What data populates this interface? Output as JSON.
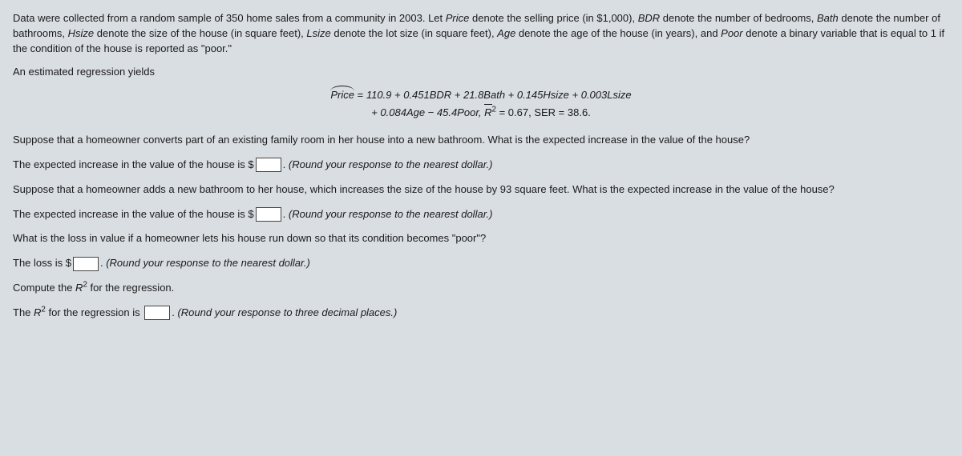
{
  "intro": {
    "prefix": "Data were collected from a random sample of 350 home sales from a community in 2003. Let ",
    "price_var": "Price",
    "price_desc": " denote the selling price (in $1,000), ",
    "bdr_var": "BDR",
    "bdr_desc": " denote the number of bedrooms, ",
    "bath_var": "Bath",
    "bath_desc": " denote the number of bathrooms, ",
    "hsize_var": "Hsize",
    "hsize_desc": " denote the size of the house (in square feet), ",
    "lsize_var": "Lsize",
    "lsize_desc": " denote the lot size (in square feet), ",
    "age_var": "Age",
    "age_desc": " denote the age of the house (in years), and ",
    "poor_var": "Poor",
    "poor_desc": " denote a binary variable that is equal to 1 if the condition of the house is reported as \"poor.\""
  },
  "regress_label": "An estimated regression yields",
  "equation": {
    "lhs": "Price",
    "eq_sign": " = ",
    "line1_rhs": "110.9 + 0.451BDR + 21.8Bath + 0.145Hsize + 0.003Lsize",
    "line2_lhs": "+ 0.084Age − 45.4Poor, ",
    "rbar": "R",
    "sq": "2",
    "line2_stats": " = 0.67, SER = 38.6."
  },
  "q1": "Suppose that a homeowner converts part of an existing family room in her house into a new bathroom. What is the expected increase in the value of the house?",
  "q1a_pre": "The expected increase in the value of the house is $",
  "q1a_post": ". ",
  "hint_dollar": "(Round your response to the nearest dollar.)",
  "q2": "Suppose that a homeowner adds a new bathroom to her house, which increases the size of the house by 93 square feet. What is the expected increase in the value of the house?",
  "q2a_pre": "The expected increase in the value of the house is $",
  "q2a_post": ". ",
  "q3": "What is the loss in value if a homeowner lets his house run down so that its condition becomes \"poor\"?",
  "q3a_pre": "The loss is $",
  "q3a_post": ". ",
  "q4_pre": "Compute the ",
  "q4_rvar": "R",
  "q4_sq": "2",
  "q4_post": " for the regression.",
  "q4a_pre1": "The ",
  "q4a_rvar": "R",
  "q4a_sq": "2",
  "q4a_pre2": " for the regression is ",
  "q4a_post": ". ",
  "hint_decimal": "(Round your response to three decimal places.)",
  "style": {
    "background": "#d9dee3",
    "text_color": "#1a1a1a",
    "font_size_pt": 10,
    "input_box_border": "#444444",
    "input_box_bg": "#ffffff"
  }
}
